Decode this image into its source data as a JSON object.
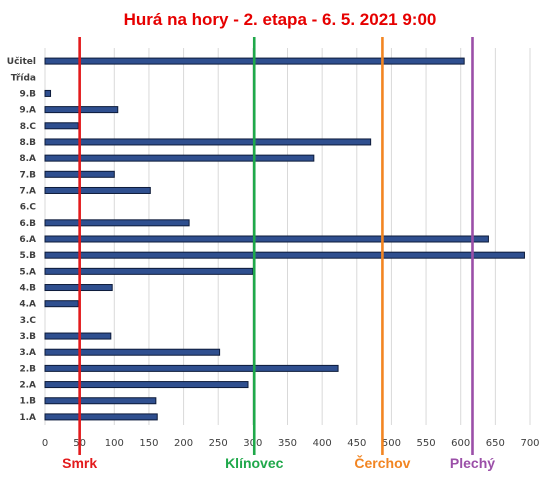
{
  "chart_data": {
    "type": "bar",
    "orientation": "horizontal",
    "title": "Hurá na hory - 2. etapa - 6. 5. 2021 9:00",
    "xlabel": "",
    "ylabel": "",
    "xlim": [
      0,
      700
    ],
    "xticks": [
      0,
      50,
      100,
      150,
      200,
      250,
      300,
      350,
      400,
      450,
      500,
      550,
      600,
      650,
      700
    ],
    "grid": "vertical",
    "legend": "none",
    "categories": [
      "Učitel",
      "Třída",
      "9.B",
      "9.A",
      "8.C",
      "8.B",
      "8.A",
      "7.B",
      "7.A",
      "6.C",
      "6.B",
      "6.A",
      "5.B",
      "5.A",
      "4.B",
      "4.A",
      "3.C",
      "3.B",
      "3.A",
      "2.B",
      "2.A",
      "1.B",
      "1.A"
    ],
    "values": [
      605,
      null,
      8,
      105,
      48,
      470,
      388,
      100,
      152,
      null,
      208,
      640,
      692,
      300,
      97,
      48,
      null,
      95,
      252,
      423,
      293,
      160,
      162
    ],
    "bar_color": "#2f4f8f",
    "bar_edge_color": "#0d1b3a",
    "markers": [
      {
        "label": "Smrk",
        "value": 50,
        "color": "#e31a1c"
      },
      {
        "label": "Klínovec",
        "value": 302,
        "color": "#1fa84a"
      },
      {
        "label": "Čerchov",
        "value": 487,
        "color": "#f28522"
      },
      {
        "label": "Plechý",
        "value": 617,
        "color": "#9b4fa8"
      }
    ]
  }
}
